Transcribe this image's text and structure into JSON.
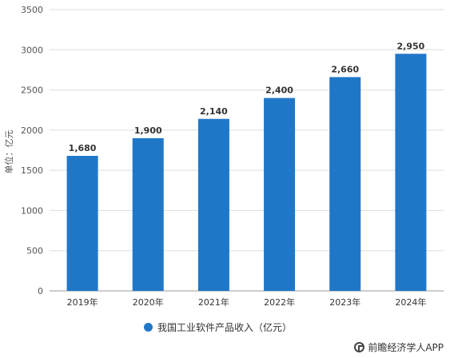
{
  "chart_data": {
    "type": "bar",
    "categories": [
      "2019年",
      "2020年",
      "2021年",
      "2022年",
      "2023年",
      "2024年"
    ],
    "values": [
      1680,
      1900,
      2140,
      2400,
      2660,
      2950
    ],
    "value_labels": [
      "1,680",
      "1,900",
      "2,140",
      "2,400",
      "2,660",
      "2,950"
    ],
    "ylabel": "单位：亿元",
    "ylim": [
      0,
      3500
    ],
    "yticks": [
      0,
      500,
      1000,
      1500,
      2000,
      2500,
      3000,
      3500
    ],
    "grid": true,
    "legend": {
      "placement": "bottom",
      "entries": [
        "我国工业软件产品收入（亿元）"
      ]
    },
    "bar_color": "#1f77c8"
  },
  "brand": {
    "text": "前瞻经济学人APP",
    "icon": "qianzhan-logo-icon"
  }
}
